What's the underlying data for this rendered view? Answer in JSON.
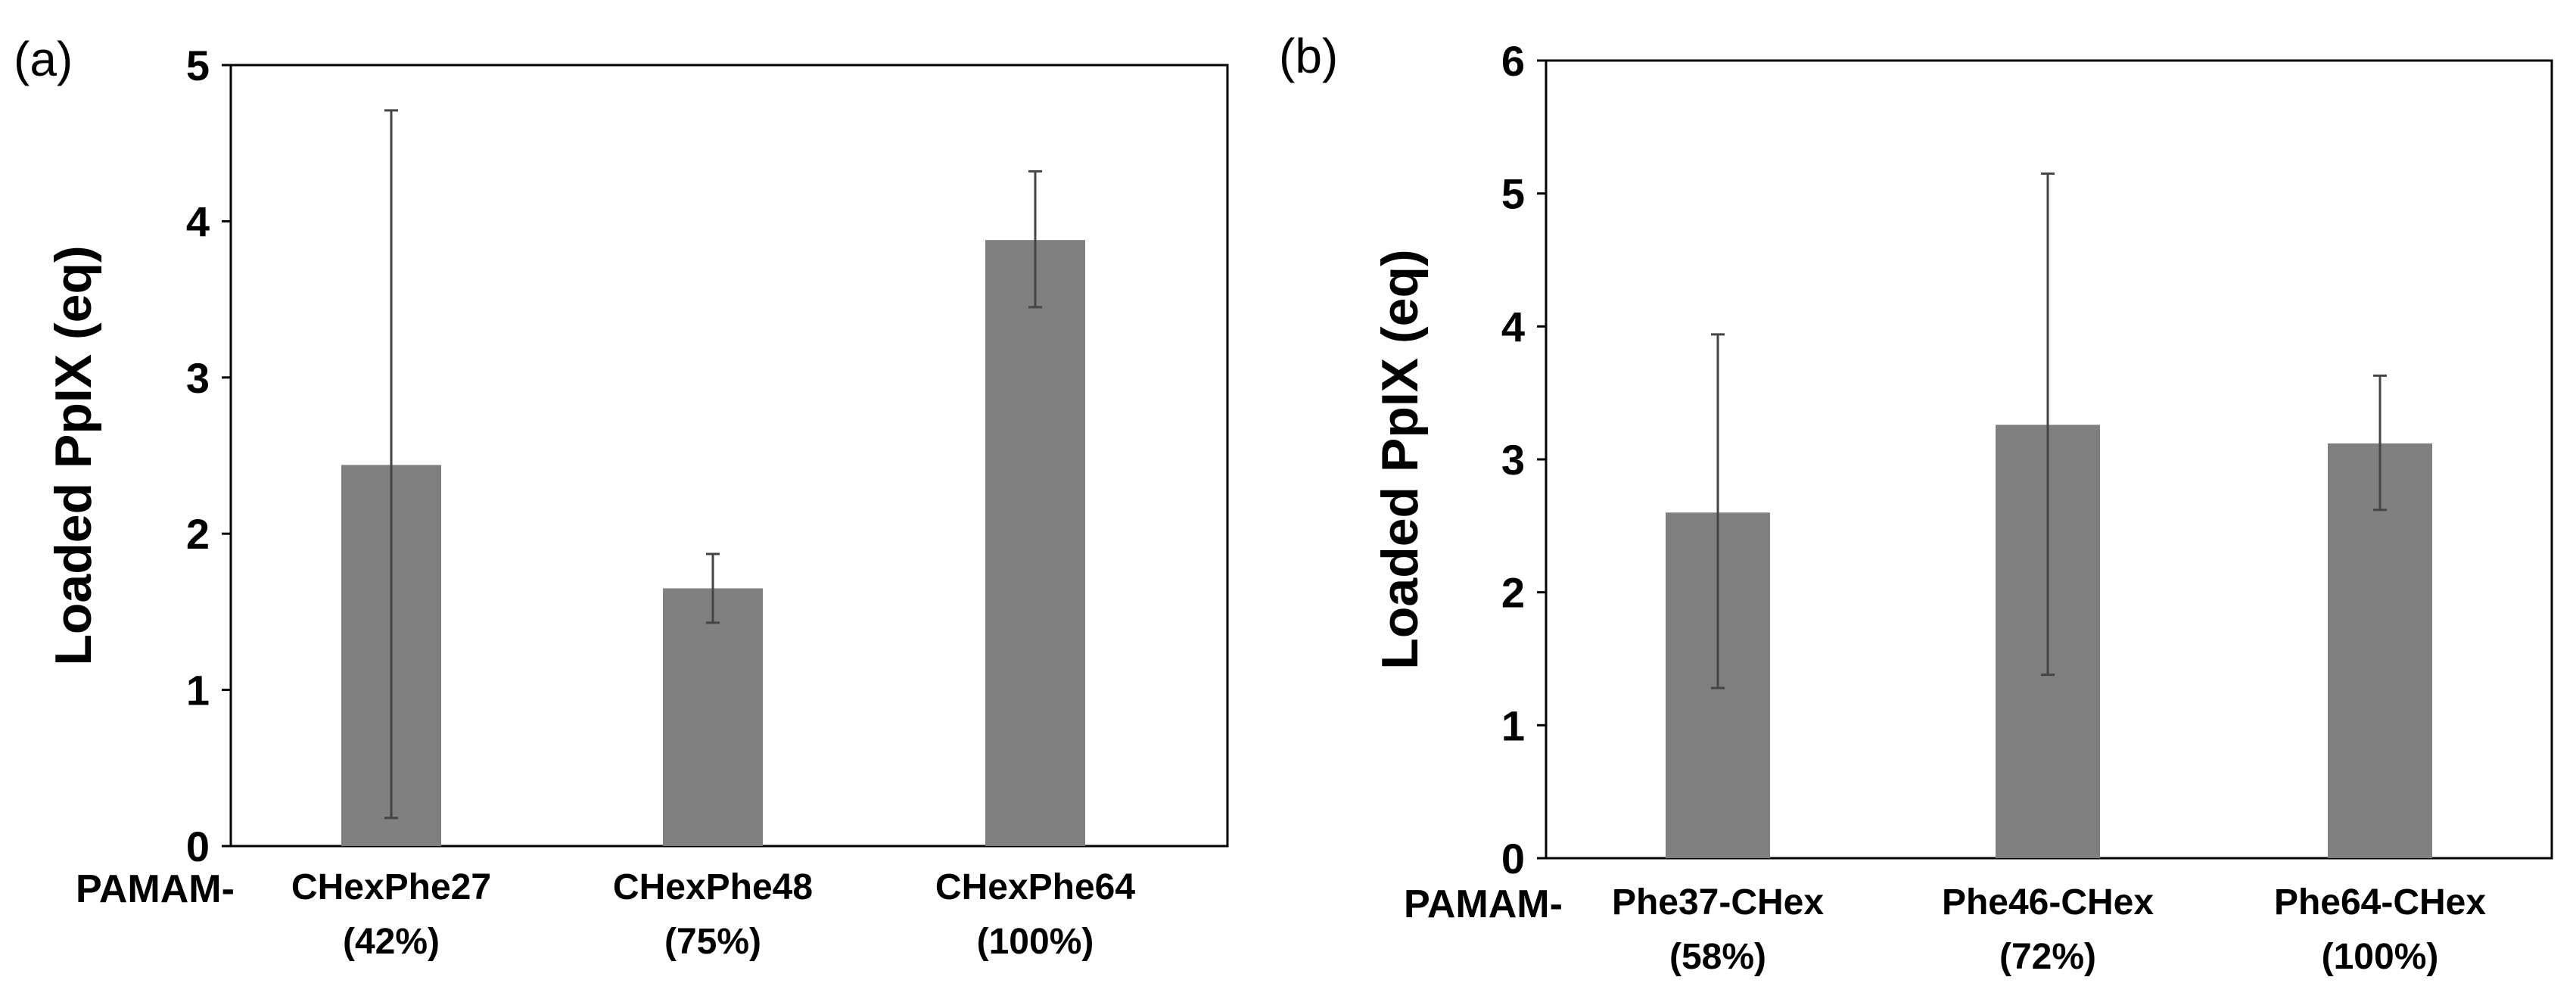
{
  "chart_data": [
    {
      "panel": "(a)",
      "type": "bar",
      "ylabel": "Loaded PpIX (eq)",
      "ylim": [
        0,
        5
      ],
      "yticks": [
        0,
        1,
        2,
        3,
        4,
        5
      ],
      "x_prefix": "PAMAM-",
      "categories": [
        {
          "name": "CHexPhe27",
          "pct": "(42%)"
        },
        {
          "name": "CHexPhe48",
          "pct": "(75%)"
        },
        {
          "name": "CHexPhe64",
          "pct": "(100%)"
        }
      ],
      "values": [
        2.44,
        1.65,
        3.88
      ],
      "error_low": [
        0.18,
        1.43,
        3.45
      ],
      "error_high": [
        4.71,
        1.87,
        4.32
      ],
      "bar_color": "#808080"
    },
    {
      "panel": "(b)",
      "type": "bar",
      "ylabel": "Loaded PpIX (eq)",
      "ylim": [
        0,
        6
      ],
      "yticks": [
        0,
        1,
        2,
        3,
        4,
        5,
        6
      ],
      "x_prefix": "PAMAM-",
      "categories": [
        {
          "name": "Phe37-CHex",
          "pct": "(58%)"
        },
        {
          "name": "Phe46-CHex",
          "pct": "(72%)"
        },
        {
          "name": "Phe64-CHex",
          "pct": "(100%)"
        }
      ],
      "values": [
        2.6,
        3.26,
        3.12
      ],
      "error_low": [
        1.28,
        1.38,
        2.62
      ],
      "error_high": [
        3.94,
        5.15,
        3.63
      ],
      "bar_color": "#808080"
    }
  ]
}
